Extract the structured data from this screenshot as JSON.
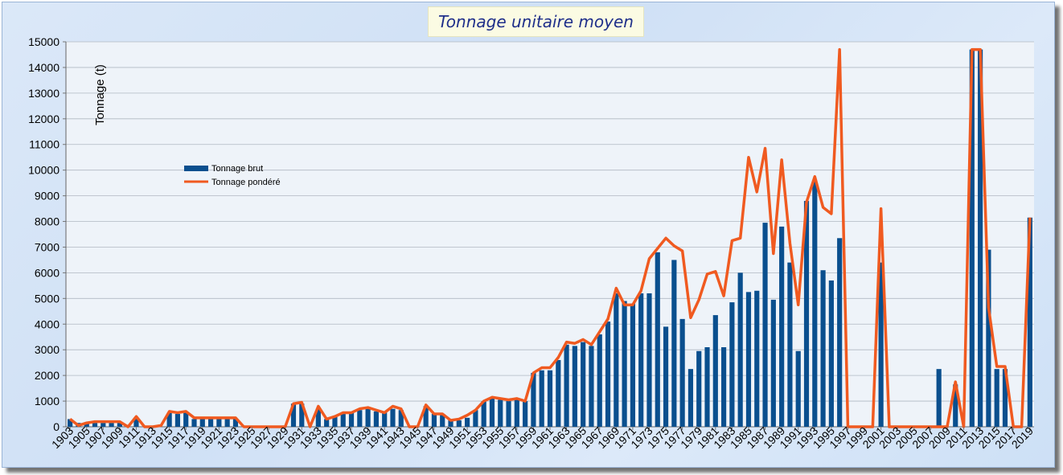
{
  "chart_data": {
    "type": "bar",
    "title": "Tonnage unitaire moyen",
    "ylabel": "Tonnage (t)",
    "xlabel": "",
    "ylim": [
      0,
      15000
    ],
    "yticks": [
      0,
      1000,
      2000,
      3000,
      4000,
      5000,
      6000,
      7000,
      8000,
      9000,
      10000,
      11000,
      12000,
      13000,
      14000,
      15000
    ],
    "legend": "left",
    "grid": true,
    "x": [
      1903,
      1904,
      1905,
      1906,
      1907,
      1908,
      1909,
      1910,
      1911,
      1912,
      1913,
      1914,
      1915,
      1916,
      1917,
      1918,
      1919,
      1920,
      1921,
      1922,
      1923,
      1924,
      1925,
      1926,
      1927,
      1928,
      1929,
      1930,
      1931,
      1932,
      1933,
      1934,
      1935,
      1936,
      1937,
      1938,
      1939,
      1940,
      1941,
      1942,
      1943,
      1944,
      1945,
      1946,
      1947,
      1948,
      1949,
      1950,
      1951,
      1952,
      1953,
      1954,
      1955,
      1956,
      1957,
      1958,
      1959,
      1960,
      1961,
      1962,
      1963,
      1964,
      1965,
      1966,
      1967,
      1968,
      1969,
      1970,
      1971,
      1972,
      1973,
      1974,
      1975,
      1976,
      1977,
      1978,
      1979,
      1980,
      1981,
      1982,
      1983,
      1984,
      1985,
      1986,
      1987,
      1988,
      1989,
      1990,
      1991,
      1992,
      1993,
      1994,
      1995,
      1996,
      1997,
      1998,
      1999,
      2000,
      2001,
      2002,
      2003,
      2004,
      2005,
      2006,
      2007,
      2008,
      2009,
      2010,
      2011,
      2012,
      2013,
      2014,
      2015,
      2016,
      2017,
      2018,
      2019
    ],
    "xtick_labels": [
      "1903",
      "1905",
      "1907",
      "1909",
      "1911",
      "1913",
      "1915",
      "1917",
      "1919",
      "1921",
      "1923",
      "1925",
      "1927",
      "1929",
      "1931",
      "1933",
      "1935",
      "1937",
      "1939",
      "1941",
      "1943",
      "1945",
      "1947",
      "1949",
      "1951",
      "1953",
      "1955",
      "1957",
      "1959",
      "1961",
      "1963",
      "1965",
      "1967",
      "1969",
      "1971",
      "1973",
      "1975",
      "1977",
      "1979",
      "1981",
      "1983",
      "1985",
      "1987",
      "1989",
      "1991",
      "1993",
      "1995",
      "1997",
      "1999",
      "2001",
      "2003",
      "2005",
      "2007",
      "2009",
      "2011",
      "2013",
      "2015",
      "2017",
      "2019"
    ],
    "series": [
      {
        "name": "Tonnage brut",
        "type": "bar",
        "color": "#0a4f8e",
        "values": [
          300,
          150,
          150,
          150,
          150,
          150,
          150,
          0,
          300,
          0,
          0,
          0,
          550,
          500,
          550,
          300,
          300,
          300,
          300,
          300,
          300,
          0,
          0,
          0,
          0,
          0,
          0,
          900,
          900,
          0,
          700,
          300,
          400,
          500,
          550,
          650,
          700,
          600,
          550,
          700,
          650,
          0,
          0,
          800,
          500,
          500,
          250,
          250,
          350,
          650,
          1000,
          1100,
          1050,
          1000,
          1050,
          1000,
          2100,
          2200,
          2200,
          2600,
          3200,
          3150,
          3300,
          3150,
          3600,
          4100,
          5200,
          4900,
          4800,
          5200,
          5200,
          6800,
          3900,
          6500,
          4200,
          2250,
          2950,
          3100,
          4350,
          3100,
          4850,
          6000,
          5250,
          5300,
          7950,
          4950,
          7800,
          6400,
          2950,
          8800,
          9550,
          6100,
          5700,
          7350,
          0,
          0,
          0,
          0,
          6400,
          0,
          0,
          0,
          0,
          0,
          0,
          2250,
          0,
          1650,
          0,
          14700,
          14700,
          6900,
          2250,
          2250,
          0,
          0,
          8150
        ]
      },
      {
        "name": "Tonnage pondéré",
        "type": "line",
        "color": "#f05a20",
        "values": [
          300,
          50,
          150,
          200,
          200,
          200,
          200,
          0,
          400,
          0,
          0,
          50,
          600,
          550,
          600,
          350,
          350,
          350,
          350,
          350,
          350,
          0,
          0,
          0,
          0,
          0,
          0,
          900,
          950,
          0,
          800,
          300,
          400,
          550,
          550,
          700,
          750,
          650,
          550,
          800,
          700,
          0,
          0,
          850,
          500,
          500,
          250,
          300,
          450,
          650,
          1000,
          1150,
          1100,
          1050,
          1100,
          1000,
          2100,
          2300,
          2300,
          2700,
          3300,
          3250,
          3400,
          3200,
          3700,
          4200,
          5400,
          4750,
          4750,
          5300,
          6550,
          6950,
          7350,
          7050,
          6850,
          4250,
          4950,
          5950,
          6050,
          5100,
          7250,
          7350,
          10500,
          9150,
          10850,
          6750,
          10400,
          7150,
          4750,
          8750,
          9750,
          8550,
          8300,
          14700,
          0,
          0,
          0,
          0,
          8500,
          0,
          0,
          0,
          0,
          0,
          0,
          0,
          0,
          1750,
          0,
          14700,
          14700,
          4650,
          2350,
          2350,
          0,
          0,
          8150
        ]
      }
    ]
  }
}
